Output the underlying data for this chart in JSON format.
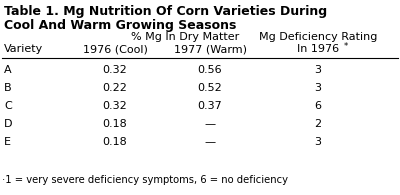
{
  "title_line1": "Table 1. Mg Nutrition Of Corn Varieties During",
  "title_line2": "Cool And Warm Growing Seasons",
  "col_header1": "% Mg In Dry Matter",
  "col_header2": "Mg Deficiency Rating",
  "sub_header_variety": "Variety",
  "sub_header_1976": "1976 (Cool)",
  "sub_header_1977": "1977 (Warm)",
  "sub_header_rating": "In 1976",
  "rows": [
    [
      "A",
      "0.32",
      "0.56",
      "3"
    ],
    [
      "B",
      "0.22",
      "0.52",
      "3"
    ],
    [
      "C",
      "0.32",
      "0.37",
      "6"
    ],
    [
      "D",
      "0.18",
      "—",
      "2"
    ],
    [
      "E",
      "0.18",
      "—",
      "3"
    ]
  ],
  "footnote": "·1 = very severe deficiency symptoms, 6 = no deficiency",
  "bg_color": "#ffffff",
  "text_color": "#000000",
  "title_fontsize": 9.0,
  "header_fontsize": 8.0,
  "data_fontsize": 8.0,
  "footnote_fontsize": 7.2
}
